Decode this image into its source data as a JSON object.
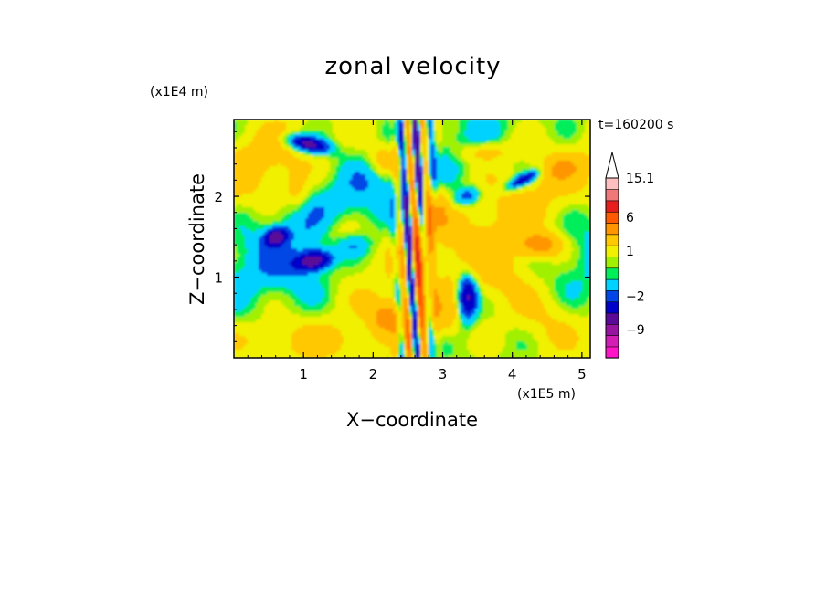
{
  "chart_data": {
    "type": "heatmap",
    "title": "zonal velocity",
    "xlabel": "X−coordinate",
    "ylabel": "Z−coordinate",
    "x_unit_label": "(x1E5 m)",
    "y_unit_label": "(x1E4 m)",
    "annotation": "t=160200 s",
    "xlim": [
      0,
      5.12
    ],
    "ylim": [
      0,
      2.95
    ],
    "x_ticks": [
      1,
      2,
      3,
      4,
      5
    ],
    "y_ticks": [
      1,
      2
    ],
    "colorbar": {
      "labels": [
        {
          "value": 15.1,
          "text": "15.1"
        },
        {
          "value": 6,
          "text": "6"
        },
        {
          "value": 1,
          "text": "1"
        },
        {
          "value": -2,
          "text": "−2"
        },
        {
          "value": -9,
          "text": "−9"
        }
      ],
      "levels": [
        -15,
        -12,
        -9,
        -6,
        -4,
        -2,
        -1,
        0,
        0.5,
        1,
        2,
        4,
        6,
        9,
        12,
        15.1
      ],
      "colors": [
        "#ff14c8",
        "#d21eb4",
        "#9614a0",
        "#5a0a96",
        "#0000c8",
        "#0046e6",
        "#00d2ff",
        "#00ee5a",
        "#a0f000",
        "#f0f000",
        "#ffc800",
        "#ff9600",
        "#ff5a00",
        "#e61e1e",
        "#f07878",
        "#ffbec0"
      ],
      "extend_max": true
    },
    "field_description": "Contoured zonal velocity field; banded jets tilted through the domain, strong positive (orange) and negative (blue) cores, vertical wave packet near x=2.5-2.8"
  }
}
